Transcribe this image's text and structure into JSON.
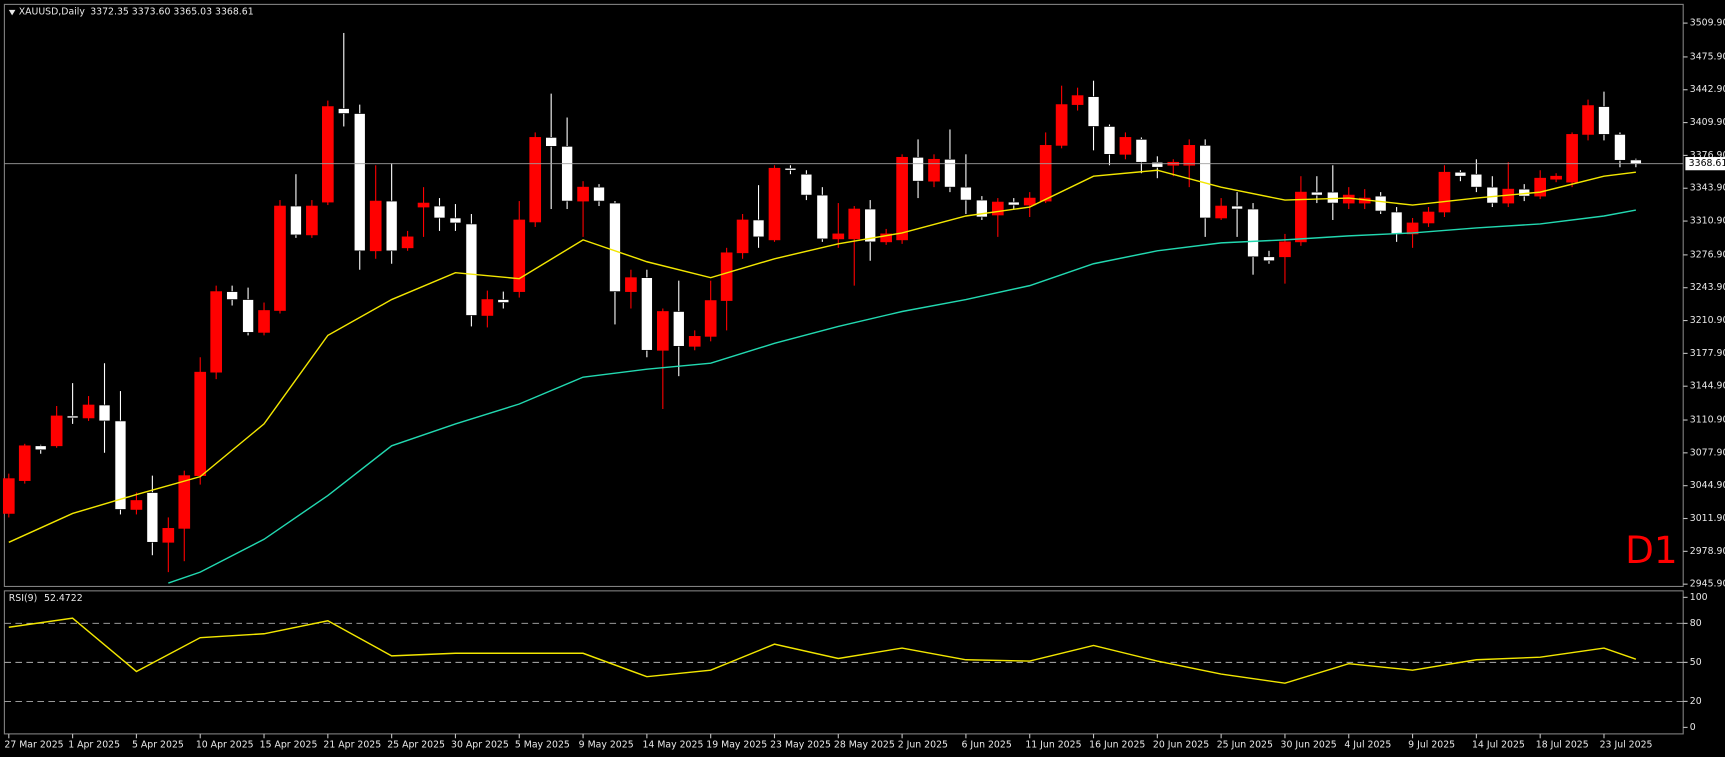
{
  "chart_data": [
    {
      "type": "candlestick",
      "title": "XAUUSD,Daily",
      "info": "3372.35 3373.60 3365.03 3368.61",
      "annotation": "D1",
      "categories": [
        "27 Mar 2025",
        null,
        null,
        null,
        "1 Apr 2025",
        null,
        null,
        null,
        "5 Apr 2025",
        null,
        null,
        null,
        "10 Apr 2025",
        null,
        null,
        null,
        "15 Apr 2025",
        null,
        null,
        null,
        "21 Apr 2025",
        null,
        null,
        null,
        "25 Apr 2025",
        null,
        null,
        null,
        "30 Apr 2025",
        null,
        null,
        null,
        "5 May 2025",
        null,
        null,
        null,
        "9 May 2025",
        null,
        null,
        null,
        "14 May 2025",
        null,
        null,
        null,
        "19 May 2025",
        null,
        null,
        null,
        "23 May 2025",
        null,
        null,
        null,
        "28 May 2025",
        null,
        null,
        null,
        "2 Jun 2025",
        null,
        null,
        null,
        "6 Jun 2025",
        null,
        null,
        null,
        "11 Jun 2025",
        null,
        null,
        null,
        "16 Jun 2025",
        null,
        null,
        null,
        "20 Jun 2025",
        null,
        null,
        null,
        "25 Jun 2025",
        null,
        null,
        null,
        "30 Jun 2025",
        null,
        null,
        null,
        "4 Jul 2025",
        null,
        null,
        null,
        "9 Jul 2025",
        null,
        null,
        null,
        "14 Jul 2025",
        null,
        null,
        null,
        "18 Jul 2025",
        null,
        null,
        null,
        "23 Jul 2025",
        null,
        null
      ],
      "open": [
        3017,
        3050,
        3085,
        3085,
        3115,
        3113,
        3126,
        3110,
        3021,
        3038,
        2988,
        3002,
        3055,
        3159,
        3240,
        3232,
        3199,
        3221,
        3326,
        3297,
        3330,
        3424,
        3419,
        3281,
        3331,
        3284,
        3325,
        3326,
        3314,
        3308,
        3216,
        3232,
        3240,
        3310,
        3395,
        3386,
        3331,
        3345,
        3329,
        3240,
        3254,
        3181,
        3220,
        3185,
        3195,
        3231,
        3279,
        3312,
        3292,
        3364,
        3358,
        3337,
        3293,
        3293,
        3323,
        3290,
        3292,
        3375,
        3351,
        3373,
        3345,
        3332,
        3317,
        3330,
        3327,
        3331,
        3387,
        3428,
        3436,
        3406,
        3378,
        3393,
        3370,
        3367,
        3367,
        3387,
        3314,
        3326,
        3323,
        3275,
        3275,
        3290,
        3340,
        3340,
        3329,
        3329,
        3336,
        3320,
        3298,
        3309,
        3320,
        3360,
        3358,
        3345,
        3329,
        3343,
        3336,
        3353,
        3350,
        3398,
        3426,
        3398,
        3372.35
      ],
      "high": [
        3057,
        3087,
        3086,
        3125,
        3148,
        3135,
        3168,
        3140,
        3038,
        3055,
        3013,
        3060,
        3174,
        3246,
        3246,
        3244,
        3229,
        3332,
        3358,
        3332,
        3432,
        3500,
        3428,
        3367,
        3369,
        3301,
        3345,
        3334,
        3328,
        3318,
        3241,
        3240,
        3331,
        3400,
        3439,
        3415,
        3351,
        3348,
        3331,
        3262,
        3262,
        3223,
        3251,
        3201,
        3251,
        3284,
        3318,
        3347,
        3367,
        3367,
        3362,
        3345,
        3329,
        3326,
        3332,
        3303,
        3378,
        3393,
        3378,
        3403,
        3378,
        3336,
        3334,
        3334,
        3340,
        3400,
        3447,
        3445,
        3452,
        3408,
        3400,
        3395,
        3376,
        3373,
        3393,
        3393,
        3334,
        3340,
        3329,
        3281,
        3298,
        3356,
        3356,
        3367,
        3345,
        3343,
        3340,
        3325,
        3314,
        3325,
        3367,
        3362,
        3373,
        3356,
        3370,
        3348,
        3362,
        3359,
        3400,
        3433,
        3441,
        3400,
        3373.6
      ],
      "low": [
        3013,
        3047,
        3077,
        3083,
        3107,
        3110,
        3078,
        3016,
        3016,
        2975,
        2958,
        2969,
        3046,
        3152,
        3226,
        3196,
        3196,
        3218,
        3294,
        3294,
        3327,
        3406,
        3262,
        3273,
        3268,
        3281,
        3295,
        3301,
        3301,
        3205,
        3204,
        3223,
        3234,
        3305,
        3323,
        3323,
        3295,
        3326,
        3207,
        3223,
        3174,
        3122,
        3155,
        3181,
        3190,
        3201,
        3273,
        3284,
        3290,
        3358,
        3332,
        3290,
        3284,
        3246,
        3271,
        3287,
        3288,
        3334,
        3345,
        3340,
        3318,
        3312,
        3295,
        3323,
        3315,
        3329,
        3384,
        3422,
        3382,
        3367,
        3373,
        3359,
        3354,
        3356,
        3345,
        3295,
        3312,
        3295,
        3257,
        3268,
        3248,
        3286,
        3329,
        3312,
        3323,
        3323,
        3318,
        3290,
        3284,
        3305,
        3315,
        3351,
        3340,
        3325,
        3325,
        3331,
        3333,
        3350,
        3345,
        3392,
        3392,
        3365,
        3365.03
      ],
      "close": [
        3052,
        3085,
        3081,
        3115,
        3113,
        3126,
        3110,
        3021,
        3030,
        2988,
        3002,
        3055,
        3159,
        3240,
        3232,
        3199,
        3221,
        3326,
        3297,
        3326,
        3426,
        3419,
        3281,
        3331,
        3281,
        3295,
        3329,
        3314,
        3309,
        3216,
        3232,
        3229,
        3312,
        3395,
        3386,
        3331,
        3345,
        3331,
        3240,
        3254,
        3181,
        3220,
        3185,
        3195,
        3231,
        3279,
        3312,
        3295,
        3364,
        3362,
        3337,
        3293,
        3298,
        3323,
        3290,
        3298,
        3375,
        3351,
        3373,
        3345,
        3332,
        3315,
        3330,
        3327,
        3334,
        3387,
        3428,
        3437,
        3406,
        3378,
        3395,
        3370,
        3365,
        3370,
        3387,
        3314,
        3326,
        3323,
        3275,
        3271,
        3290,
        3340,
        3337,
        3329,
        3337,
        3334,
        3321,
        3298,
        3309,
        3320,
        3360,
        3356,
        3345,
        3329,
        3343,
        3336,
        3354,
        3356,
        3398,
        3427,
        3398,
        3372,
        3368.61
      ],
      "up_color": "#ff0000",
      "down_color": "#ffffff",
      "overlays": [
        {
          "color": "#f2e600",
          "x": [
            0,
            4,
            8,
            12,
            16,
            20,
            24,
            28,
            32,
            36,
            40,
            44,
            48,
            52,
            56,
            60,
            64,
            68,
            72,
            76,
            80,
            84,
            88,
            92,
            96,
            100,
            102
          ],
          "values": [
            2988,
            3017,
            3036,
            3054,
            3107,
            3196,
            3232,
            3259,
            3253,
            3292,
            3270,
            3254,
            3273,
            3288,
            3299,
            3316,
            3325,
            3356,
            3362,
            3345,
            3332,
            3334,
            3327,
            3334,
            3340,
            3356,
            3360
          ]
        },
        {
          "color": "#22d8b0",
          "x": [
            10,
            12,
            16,
            20,
            24,
            28,
            32,
            36,
            40,
            44,
            48,
            52,
            56,
            60,
            64,
            68,
            72,
            76,
            80,
            84,
            88,
            92,
            96,
            100,
            102
          ],
          "values": [
            2947,
            2958,
            2991,
            3035,
            3085,
            3107,
            3127,
            3154,
            3162,
            3168,
            3188,
            3205,
            3220,
            3232,
            3246,
            3268,
            3281,
            3289,
            3292,
            3296,
            3299,
            3304,
            3308,
            3316,
            3322
          ]
        }
      ],
      "ylim": [
        2943.6,
        3528.7
      ],
      "yticks": [
        {
          "value": 3509.9,
          "label": "3509.90"
        },
        {
          "value": 3475.9,
          "label": "3475.90"
        },
        {
          "value": 3442.9,
          "label": "3442.90"
        },
        {
          "value": 3409.9,
          "label": "3409.90"
        },
        {
          "value": 3376.9,
          "label": "3376.90"
        },
        {
          "value": 3343.9,
          "label": "3343.90"
        },
        {
          "value": 3310.9,
          "label": "3310.90"
        },
        {
          "value": 3276.9,
          "label": "3276.90"
        },
        {
          "value": 3243.9,
          "label": "3243.90"
        },
        {
          "value": 3210.9,
          "label": "3210.90"
        },
        {
          "value": 3177.9,
          "label": "3177.90"
        },
        {
          "value": 3144.9,
          "label": "3144.90"
        },
        {
          "value": 3110.9,
          "label": "3110.90"
        },
        {
          "value": 3077.9,
          "label": "3077.90"
        },
        {
          "value": 3044.9,
          "label": "3044.90"
        },
        {
          "value": 3011.9,
          "label": "3011.90"
        },
        {
          "value": 2978.9,
          "label": "2978.90"
        },
        {
          "value": 2945.9,
          "label": "2945.90"
        }
      ]
    },
    {
      "type": "line",
      "title": "RSI(9)",
      "color": "#f2e600",
      "x": [
        0,
        4,
        8,
        12,
        16,
        20,
        24,
        28,
        32,
        36,
        40,
        44,
        48,
        52,
        56,
        60,
        64,
        68,
        72,
        76,
        80,
        84,
        88,
        92,
        96,
        100,
        102
      ],
      "values": [
        77,
        84,
        43,
        69,
        72,
        82,
        55,
        57,
        57,
        57,
        39,
        44,
        64,
        53,
        61,
        52,
        51,
        63,
        51,
        41,
        34,
        49,
        44,
        52,
        54,
        61,
        52.4722
      ],
      "ylim": [
        -5,
        105
      ],
      "yticks": [
        100,
        80,
        50,
        20,
        0
      ],
      "levels": [
        80,
        50,
        20
      ]
    }
  ]
}
